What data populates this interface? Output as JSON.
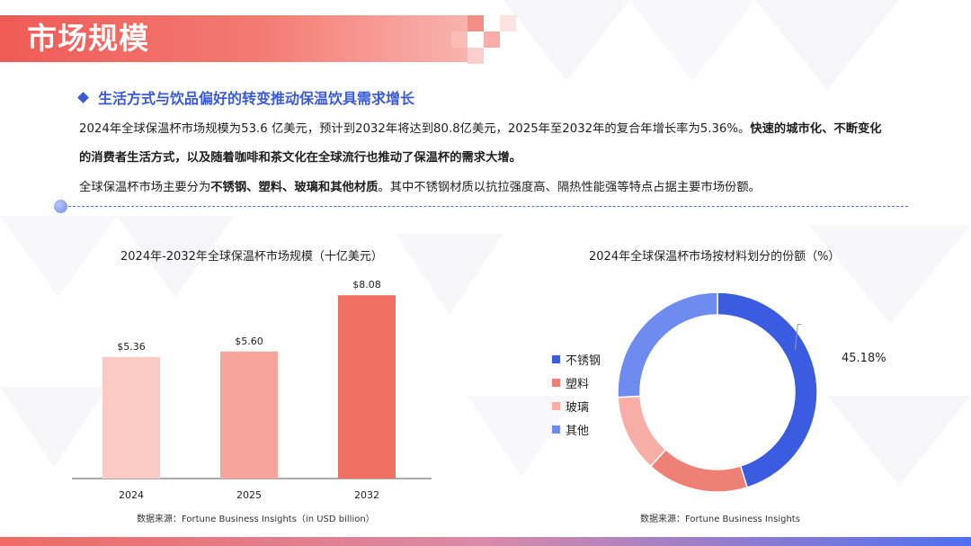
{
  "page": {
    "title": "市场规模"
  },
  "section": {
    "heading": "生活方式与饮品偏好的转变推动保温饮具需求增长",
    "para1_line1_normal": "2024年全球保温杯市场规模为53.6 亿美元，预计到2032年将达到80.8亿美元，2025年至2032年的复合年增长率为5.36%。",
    "para1_line1_bold": "快速的城市化、不断变化",
    "para1_line2_bold": "的消费者生活方式，以及随着咖啡和茶文化在全球流行也推动了保温杯的需求大增。",
    "para2_pre": "全球保温杯市场主要分为",
    "para2_bold": "不锈钢、塑料、玻璃和其他材质",
    "para2_post": "。其中不锈钢材质以抗拉强度高、隔热性能强等特点占据主要市场份额。"
  },
  "colors": {
    "accent": "#3b5ad6",
    "brand_red": "#ef5b57"
  },
  "chart_data": [
    {
      "type": "bar",
      "title": "2024年-2032年全球保温杯市场规模（十亿美元）",
      "categories": [
        "2024",
        "2025",
        "2032"
      ],
      "values": [
        5.36,
        5.6,
        8.08
      ],
      "labels": [
        "$5.36",
        "$5.60",
        "$8.08"
      ],
      "colors": [
        "#fbcac5",
        "#f7a49c",
        "#f07064"
      ],
      "ylim": [
        0,
        9.2
      ],
      "grid": false,
      "source": "数据来源：Fortune Business Insights（in USD billion）"
    },
    {
      "type": "pie",
      "title": "2024年全球保温杯市场按材料划分的份额（%）",
      "categories": [
        "不锈钢",
        "塑料",
        "玻璃",
        "其他"
      ],
      "values": [
        45.18,
        16.5,
        12.5,
        25.82
      ],
      "colors": [
        "#3b5be0",
        "#ee8076",
        "#f7aea6",
        "#6e8cf0"
      ],
      "annotation": "45.18%",
      "legend": "left",
      "source": "数据来源：Fortune Business Insights"
    }
  ]
}
